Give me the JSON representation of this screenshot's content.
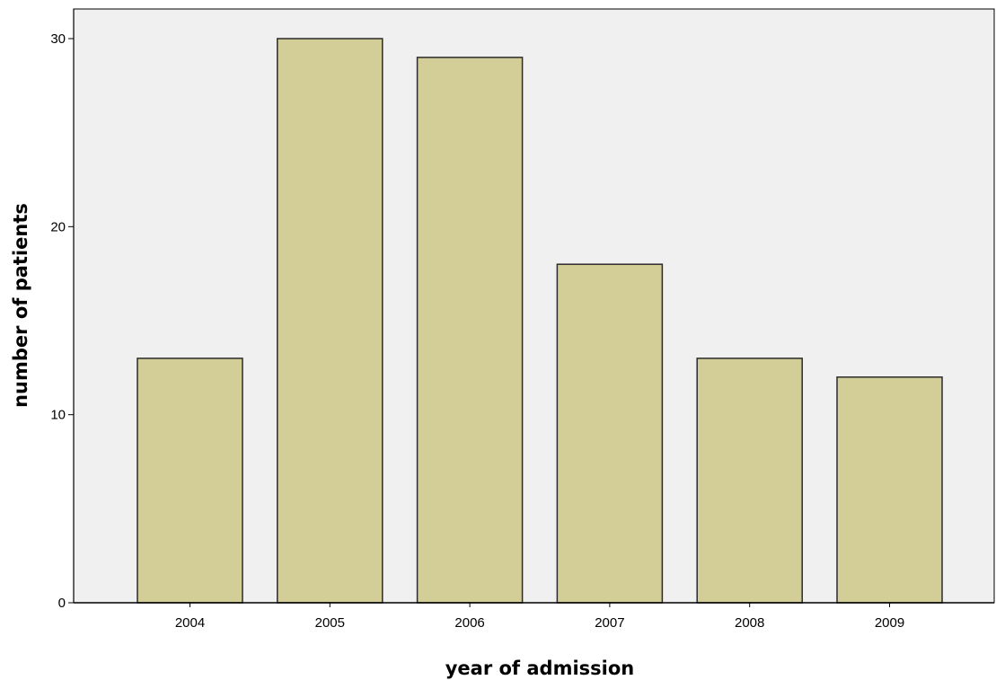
{
  "chart_data": {
    "type": "bar",
    "title": "",
    "xlabel": "year of admission",
    "ylabel": "number of patients",
    "categories": [
      "2004",
      "2005",
      "2006",
      "2007",
      "2008",
      "2009"
    ],
    "values": [
      13,
      30,
      29,
      18,
      13,
      12
    ],
    "ylim": [
      0,
      32
    ],
    "yticks": [
      0,
      10,
      20,
      30
    ],
    "grid": false,
    "legend": "none",
    "colors": {
      "bar_fill": "#d3cd97",
      "bar_stroke": "#2b2b2b",
      "plot_background": "#f0f0f0",
      "axis": "#000000"
    }
  }
}
